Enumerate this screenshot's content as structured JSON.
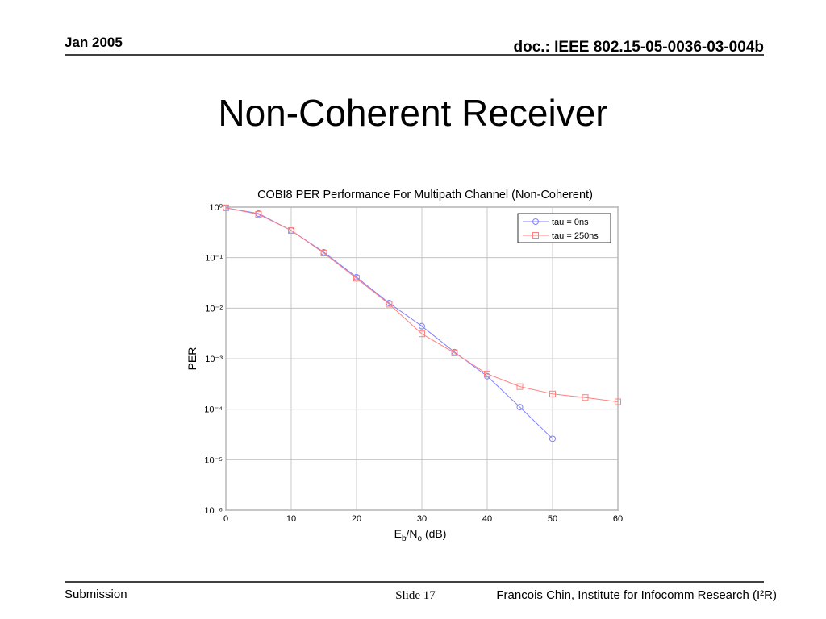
{
  "header": {
    "date": "Jan 2005",
    "doc": "doc.: IEEE 802.15-05-0036-03-004b"
  },
  "slide_title": "Non-Coherent Receiver",
  "footer": {
    "left": "Submission",
    "slide": "Slide 17",
    "right": "Francois Chin, Institute for Infocomm Research (I²R)"
  },
  "chart_data": {
    "type": "line",
    "title": "COBI8 PER Performance For Multipath Channel (Non-Coherent)",
    "xlabel": [
      "E",
      "b",
      "/N",
      "o",
      " (dB)"
    ],
    "ylabel": "PER",
    "x": [
      0,
      5,
      10,
      15,
      20,
      25,
      30,
      35,
      40,
      45,
      50,
      55,
      60
    ],
    "series": [
      {
        "name": "tau = 0ns",
        "color": "#8080ff",
        "marker": "circle",
        "values": [
          0.97,
          0.745,
          0.345,
          0.128,
          0.041,
          0.0126,
          0.0044,
          0.00135,
          0.00045,
          0.00011,
          2.6e-05,
          null,
          null
        ]
      },
      {
        "name": "tau = 250ns",
        "color": "#ff8080",
        "marker": "square",
        "values": [
          0.97,
          0.72,
          0.345,
          0.123,
          0.039,
          0.012,
          0.0031,
          0.0013,
          0.0005,
          0.00028,
          0.0002,
          0.00017,
          0.00014
        ]
      }
    ],
    "xlim": [
      0,
      60
    ],
    "xticks": [
      0,
      10,
      20,
      30,
      40,
      50,
      60
    ],
    "ylim": [
      1e-06,
      1
    ],
    "log_y": true,
    "yticks": [
      {
        "value": 1e-06,
        "label": "10⁻⁶"
      },
      {
        "value": 1e-05,
        "label": "10⁻⁵"
      },
      {
        "value": 0.0001,
        "label": "10⁻⁴"
      },
      {
        "value": 0.001,
        "label": "10⁻³"
      },
      {
        "value": 0.01,
        "label": "10⁻²"
      },
      {
        "value": 0.1,
        "label": "10⁻¹"
      },
      {
        "value": 1,
        "label": "10⁰"
      }
    ],
    "grid": true,
    "legend": "upper right"
  }
}
